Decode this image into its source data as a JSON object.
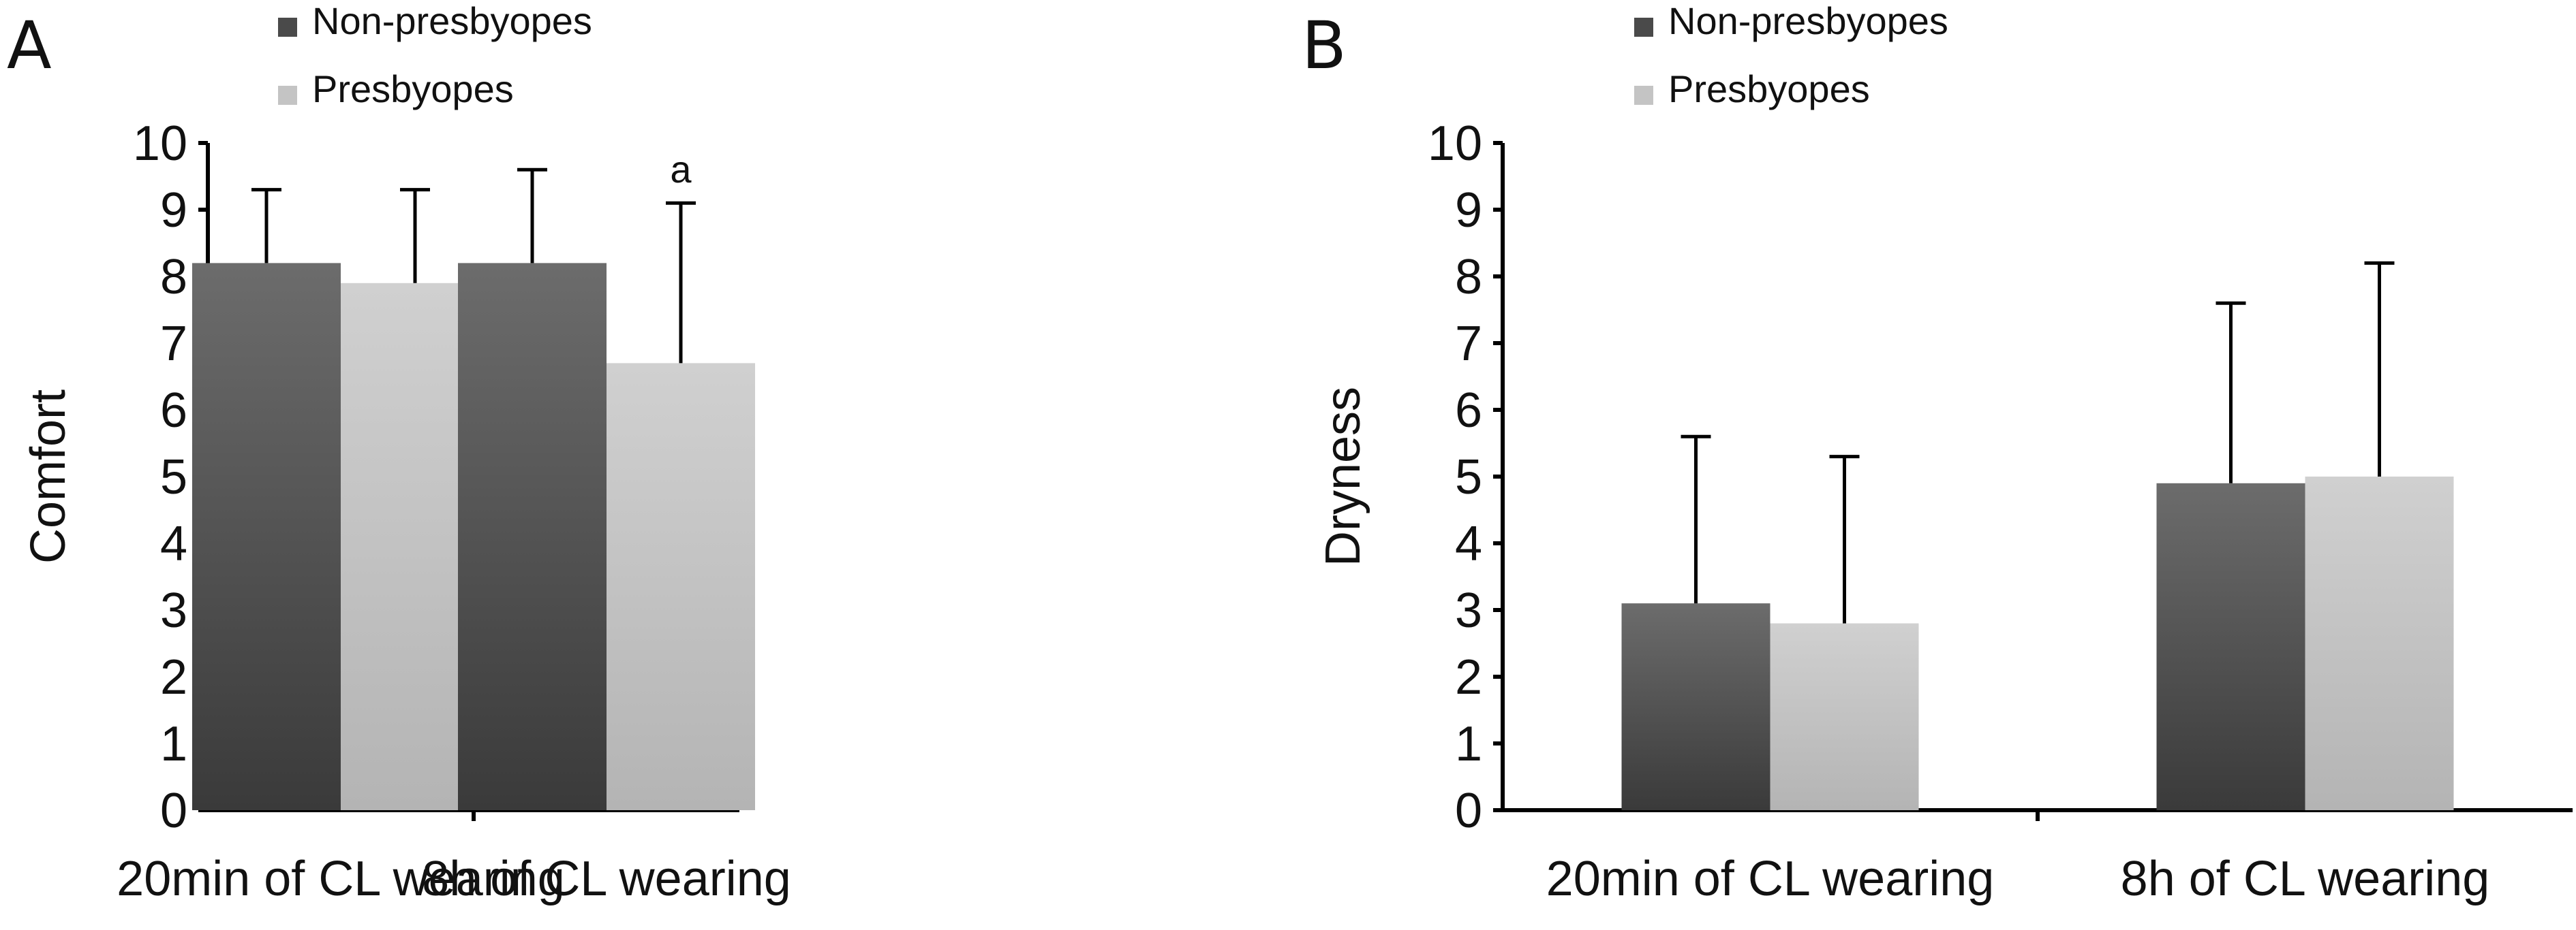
{
  "chart_data": [
    {
      "panel": "A",
      "type": "bar",
      "categories": [
        "20min of CL wearing",
        "8h of CL wearing"
      ],
      "series": [
        {
          "name": "Non-presbyopes",
          "values": [
            8.2,
            8.2
          ],
          "error": [
            1.1,
            1.4
          ]
        },
        {
          "name": "Presbyopes",
          "values": [
            7.9,
            6.7
          ],
          "error": [
            1.4,
            2.4
          ]
        }
      ],
      "xlabel": "",
      "ylabel": "Comfort",
      "ylim": [
        0,
        10
      ],
      "yticks": [
        0,
        1,
        2,
        3,
        4,
        5,
        6,
        7,
        8,
        9,
        10
      ],
      "annotations": [
        {
          "text": "a",
          "series": 1,
          "category": 1
        }
      ],
      "legend": "top-left",
      "grid": false
    },
    {
      "panel": "B",
      "type": "bar",
      "categories": [
        "20min of CL wearing",
        "8h of CL wearing"
      ],
      "series": [
        {
          "name": "Non-presbyopes",
          "values": [
            3.1,
            4.9
          ],
          "error": [
            2.5,
            2.7
          ]
        },
        {
          "name": "Presbyopes",
          "values": [
            2.8,
            5.0
          ],
          "error": [
            2.5,
            3.2
          ]
        }
      ],
      "xlabel": "",
      "ylabel": "Dryness",
      "ylim": [
        0,
        10
      ],
      "yticks": [
        0,
        1,
        2,
        3,
        4,
        5,
        6,
        7,
        8,
        9,
        10
      ],
      "annotations": [],
      "legend": "top-left",
      "grid": false
    }
  ],
  "colors": {
    "non_presbyopes": "#4a4a4a",
    "presbyopes": "#c4c4c4",
    "axis": "#000000"
  }
}
